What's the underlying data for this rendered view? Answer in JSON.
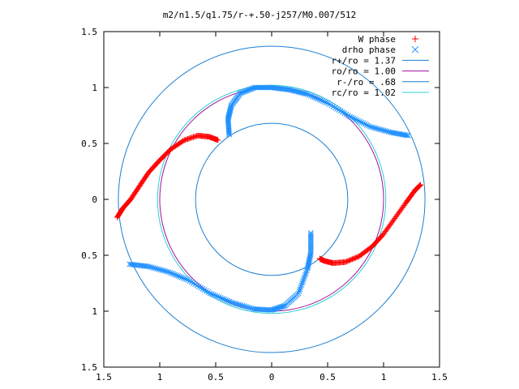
{
  "chart_data": {
    "type": "scatter",
    "title": "m2/n1.5/q1.75/r-+.50-j257/M0.007/512",
    "xlabel": "",
    "ylabel": "",
    "xlim": [
      -1.5,
      1.5
    ],
    "ylim": [
      -1.5,
      1.5
    ],
    "x_tick_labels": [
      "1.5",
      "1",
      "0.5",
      "0",
      "0.5",
      "1",
      "1.5"
    ],
    "x_tick_values": [
      -1.5,
      -1,
      -0.5,
      0,
      0.5,
      1,
      1.5
    ],
    "y_tick_labels": [
      "1.5",
      "1",
      "0.5",
      "0",
      "0.5",
      "1",
      "1.5"
    ],
    "y_tick_values": [
      1.5,
      1,
      0.5,
      0,
      -0.5,
      -1,
      -1.5
    ],
    "grid": false,
    "legend_position": "top-right",
    "legend": [
      {
        "label": "W phase",
        "kind": "points",
        "marker": "+",
        "color": "#ff0000"
      },
      {
        "label": "drho phase",
        "kind": "points",
        "marker": "x",
        "color": "#1e90ff"
      },
      {
        "label": "r+/ro = 1.37",
        "kind": "circle",
        "radius": 1.37,
        "color": "#1e7fcf"
      },
      {
        "label": "ro/ro = 1.00",
        "kind": "circle",
        "radius": 1.0,
        "color": "#a010a0"
      },
      {
        "label": "r-/ro = .68",
        "kind": "circle",
        "radius": 0.68,
        "color": "#1e7fcf"
      },
      {
        "label": "rc/ro = 1.02",
        "kind": "circle",
        "radius": 1.02,
        "color": "#30d0d0"
      }
    ],
    "series": [
      {
        "name": "W phase",
        "arms": [
          [
            [
              -1.38,
              -0.16
            ],
            [
              -1.33,
              -0.08
            ],
            [
              -1.26,
              0.0
            ],
            [
              -1.18,
              0.12
            ],
            [
              -1.1,
              0.24
            ],
            [
              -1.0,
              0.35
            ],
            [
              -0.9,
              0.45
            ],
            [
              -0.78,
              0.53
            ],
            [
              -0.66,
              0.57
            ],
            [
              -0.56,
              0.56
            ],
            [
              -0.48,
              0.53
            ]
          ],
          [
            [
              1.33,
              0.13
            ],
            [
              1.28,
              0.08
            ],
            [
              1.2,
              -0.03
            ],
            [
              1.1,
              -0.17
            ],
            [
              1.0,
              -0.31
            ],
            [
              0.9,
              -0.42
            ],
            [
              0.78,
              -0.51
            ],
            [
              0.66,
              -0.56
            ],
            [
              0.55,
              -0.57
            ],
            [
              0.47,
              -0.55
            ],
            [
              0.43,
              -0.53
            ]
          ]
        ]
      },
      {
        "name": "drho phase",
        "arms": [
          [
            [
              -0.38,
              0.58
            ],
            [
              -0.39,
              0.72
            ],
            [
              -0.36,
              0.84
            ],
            [
              -0.28,
              0.95
            ],
            [
              -0.15,
              1.0
            ],
            [
              0.0,
              1.0
            ],
            [
              0.16,
              0.98
            ],
            [
              0.32,
              0.94
            ],
            [
              0.5,
              0.86
            ],
            [
              0.7,
              0.74
            ],
            [
              0.88,
              0.65
            ],
            [
              1.06,
              0.6
            ],
            [
              1.22,
              0.57
            ]
          ],
          [
            [
              0.35,
              -0.3
            ],
            [
              0.35,
              -0.48
            ],
            [
              0.32,
              -0.62
            ],
            [
              0.24,
              -0.84
            ],
            [
              0.12,
              -0.95
            ],
            [
              0.0,
              -0.99
            ],
            [
              -0.16,
              -0.98
            ],
            [
              -0.36,
              -0.92
            ],
            [
              -0.55,
              -0.84
            ],
            [
              -0.75,
              -0.72
            ],
            [
              -0.92,
              -0.65
            ],
            [
              -1.1,
              -0.6
            ],
            [
              -1.27,
              -0.58
            ]
          ]
        ]
      }
    ]
  }
}
